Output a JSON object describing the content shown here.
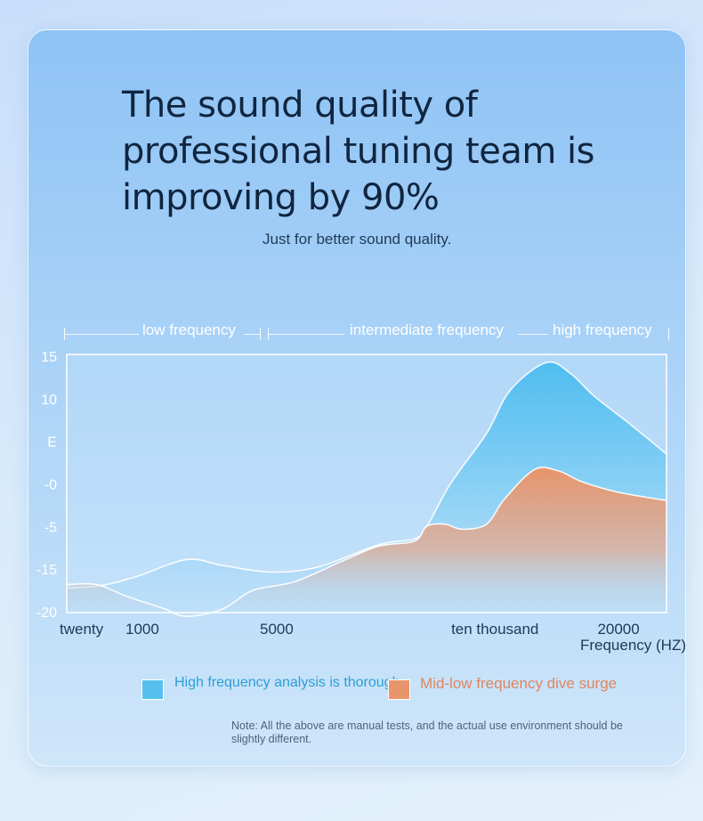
{
  "header": {
    "title": "The sound quality of professional tuning team is improving by 90%",
    "subtitle": "Just for better sound quality."
  },
  "bands": [
    {
      "label": "low frequency"
    },
    {
      "label": "intermediate frequency"
    },
    {
      "label": "high frequency"
    }
  ],
  "legend": [
    {
      "label": "High frequency analysis is thorough",
      "color": "#55c0ee",
      "text_color": "#2c9fd6"
    },
    {
      "label": "Mid-low frequency dive surge",
      "color": "#e8956c",
      "text_color": "#de8660"
    }
  ],
  "note": "Note: All the above are manual tests, and the actual use environment should be slightly different.",
  "chart_data": {
    "type": "area",
    "xlabel": "Frequency (HZ)",
    "x_ticks": [
      {
        "label": "twenty",
        "pos": 0.0
      },
      {
        "label": "1000",
        "pos": 0.126
      },
      {
        "label": "5000",
        "pos": 0.35
      },
      {
        "label": "ten thousand",
        "pos": 0.714
      },
      {
        "label": "20000",
        "pos": 0.92
      }
    ],
    "y_ticks": [
      "15",
      "10",
      "E",
      "-0",
      "-5",
      "-15",
      "-20"
    ],
    "ylim": [
      -20,
      15
    ],
    "series": [
      {
        "name": "High frequency analysis is thorough",
        "color": "#55c0ee",
        "points": [
          [
            0.0,
            -16.7
          ],
          [
            0.06,
            -16.3
          ],
          [
            0.12,
            -15.0
          ],
          [
            0.2,
            -12.8
          ],
          [
            0.26,
            -13.6
          ],
          [
            0.34,
            -14.5
          ],
          [
            0.42,
            -13.8
          ],
          [
            0.52,
            -10.8
          ],
          [
            0.58,
            -10.0
          ],
          [
            0.6,
            -8.4
          ],
          [
            0.64,
            -2.5
          ],
          [
            0.7,
            4.3
          ],
          [
            0.74,
            10.2
          ],
          [
            0.8,
            13.9
          ],
          [
            0.84,
            12.4
          ],
          [
            0.88,
            9.3
          ],
          [
            0.94,
            5.5
          ],
          [
            1.0,
            1.5
          ]
        ]
      },
      {
        "name": "Mid-low frequency dive surge",
        "color": "#e8956c",
        "points": [
          [
            0.0,
            -16.2
          ],
          [
            0.05,
            -16.2
          ],
          [
            0.1,
            -17.8
          ],
          [
            0.16,
            -19.4
          ],
          [
            0.2,
            -20.5
          ],
          [
            0.26,
            -19.5
          ],
          [
            0.31,
            -17.0
          ],
          [
            0.38,
            -15.8
          ],
          [
            0.46,
            -13.0
          ],
          [
            0.52,
            -11.0
          ],
          [
            0.58,
            -10.3
          ],
          [
            0.6,
            -8.3
          ],
          [
            0.63,
            -8.0
          ],
          [
            0.66,
            -8.7
          ],
          [
            0.7,
            -8.0
          ],
          [
            0.73,
            -4.6
          ],
          [
            0.78,
            -0.6
          ],
          [
            0.82,
            -0.8
          ],
          [
            0.86,
            -2.3
          ],
          [
            0.92,
            -3.7
          ],
          [
            1.0,
            -4.8
          ]
        ]
      }
    ]
  }
}
